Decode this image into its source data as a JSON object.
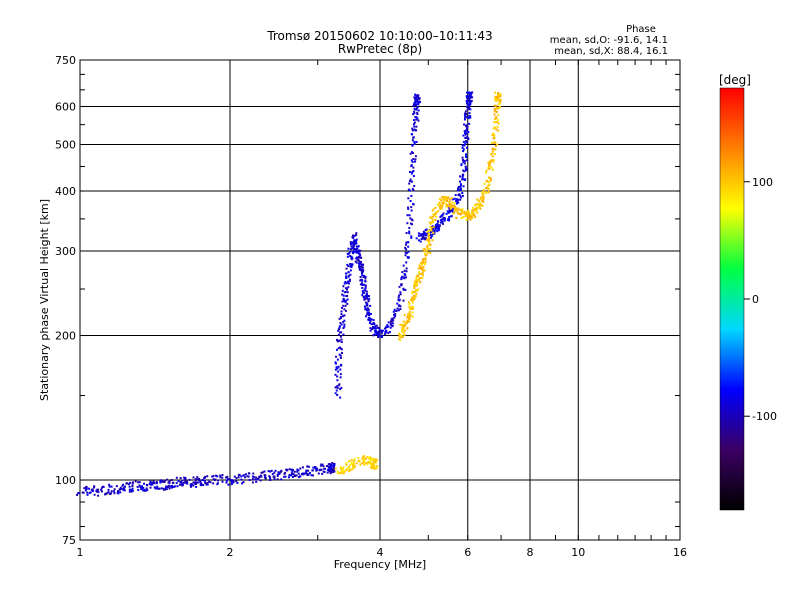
{
  "header": {
    "title_line1": "Tromsø 20150602 10:10:00–10:11:43",
    "title_line2": "RwPretec (8p)",
    "phase_title": "Phase",
    "phase_o": "mean, sd,O: -91.6, 14.1",
    "phase_x": "mean, sd,X:  88.4, 16.1"
  },
  "colorbar": {
    "label": "[deg]",
    "ticks": [
      "100",
      "0",
      "-100"
    ],
    "tick_values": [
      100,
      0,
      -100
    ],
    "range": [
      -180,
      180
    ],
    "colors": [
      "#000000",
      "#3c0064",
      "#0000ff",
      "#00d8ff",
      "#00ff40",
      "#ffff00",
      "#ff8000",
      "#ff0000"
    ]
  },
  "chart_data": {
    "type": "scatter",
    "xlabel": "Frequency [MHz]",
    "ylabel": "Stationary phase Virtual Height [km]",
    "x_scale": "log",
    "y_scale": "log",
    "xlim": [
      1,
      16
    ],
    "ylim": [
      75,
      750
    ],
    "x_ticks": [
      1,
      2,
      4,
      6,
      8,
      10,
      16
    ],
    "x_tick_labels": [
      "1",
      "2",
      "4",
      "6",
      "8",
      "10",
      "16"
    ],
    "y_ticks": [
      75,
      100,
      200,
      300,
      400,
      500,
      600,
      750
    ],
    "y_tick_labels": [
      "75",
      "100",
      "200",
      "300",
      "400",
      "500",
      "600",
      "750"
    ],
    "grid": true,
    "traces": [
      {
        "phase": -95,
        "points": [
          [
            1.0,
            95
          ],
          [
            1.1,
            95
          ],
          [
            1.2,
            96
          ],
          [
            1.3,
            97
          ],
          [
            1.4,
            97
          ],
          [
            1.5,
            98
          ],
          [
            1.6,
            99
          ],
          [
            1.7,
            99
          ],
          [
            1.8,
            100
          ],
          [
            2.0,
            100
          ],
          [
            2.2,
            101
          ],
          [
            2.4,
            102
          ],
          [
            2.6,
            103
          ],
          [
            2.8,
            104
          ],
          [
            3.0,
            105
          ],
          [
            3.2,
            106
          ]
        ]
      },
      {
        "phase": -92,
        "points": [
          [
            3.3,
            150
          ],
          [
            3.3,
            180
          ],
          [
            3.35,
            210
          ],
          [
            3.4,
            240
          ],
          [
            3.45,
            270
          ],
          [
            3.5,
            300
          ],
          [
            3.55,
            320
          ],
          [
            3.6,
            300
          ],
          [
            3.65,
            280
          ],
          [
            3.7,
            260
          ],
          [
            3.75,
            240
          ],
          [
            3.8,
            220
          ],
          [
            3.9,
            205
          ],
          [
            4.0,
            202
          ],
          [
            4.2,
            210
          ],
          [
            4.4,
            235
          ],
          [
            4.5,
            280
          ],
          [
            4.6,
            350
          ],
          [
            4.65,
            450
          ],
          [
            4.7,
            550
          ],
          [
            4.75,
            620
          ]
        ]
      },
      {
        "phase": -88,
        "points": [
          [
            4.8,
            320
          ],
          [
            5.0,
            325
          ],
          [
            5.2,
            335
          ],
          [
            5.4,
            350
          ],
          [
            5.6,
            370
          ],
          [
            5.8,
            400
          ],
          [
            5.9,
            450
          ],
          [
            5.95,
            520
          ],
          [
            6.0,
            580
          ],
          [
            6.05,
            630
          ]
        ]
      },
      {
        "phase": 100,
        "points": [
          [
            4.4,
            200
          ],
          [
            4.5,
            210
          ],
          [
            4.6,
            225
          ],
          [
            4.7,
            245
          ],
          [
            4.8,
            265
          ],
          [
            4.9,
            285
          ],
          [
            5.0,
            310
          ],
          [
            5.1,
            350
          ],
          [
            5.3,
            380
          ],
          [
            5.5,
            380
          ],
          [
            5.7,
            360
          ],
          [
            6.0,
            355
          ],
          [
            6.2,
            360
          ],
          [
            6.4,
            380
          ],
          [
            6.6,
            420
          ],
          [
            6.75,
            480
          ],
          [
            6.85,
            560
          ],
          [
            6.9,
            630
          ]
        ]
      },
      {
        "phase": 95,
        "points": [
          [
            3.3,
            104
          ],
          [
            3.5,
            108
          ],
          [
            3.7,
            110
          ],
          [
            3.9,
            108
          ]
        ]
      }
    ]
  }
}
